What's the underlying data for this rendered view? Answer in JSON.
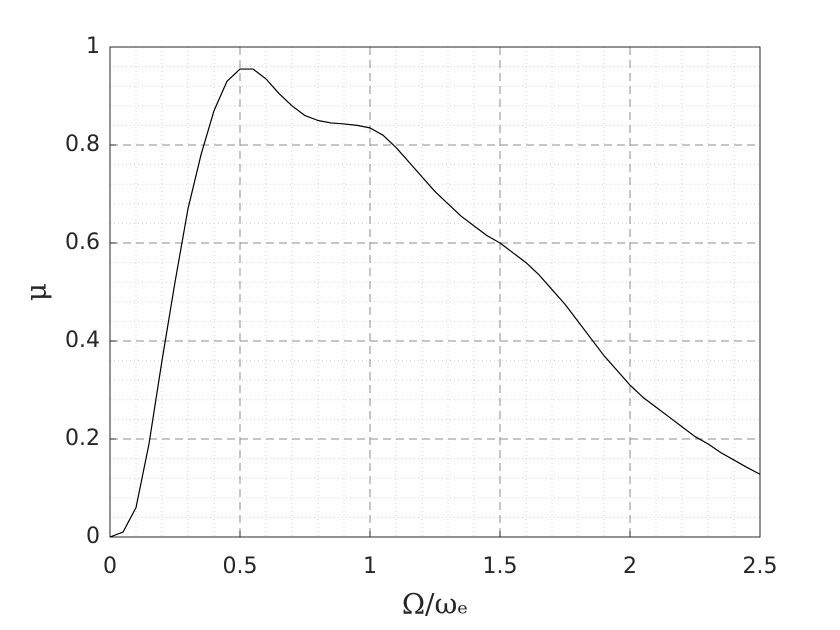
{
  "chart_data": {
    "type": "line",
    "xlabel": "Ω/ωₑ",
    "ylabel": "μ",
    "x": [
      0,
      0.05,
      0.1,
      0.15,
      0.2,
      0.25,
      0.3,
      0.35,
      0.4,
      0.45,
      0.5,
      0.55,
      0.6,
      0.65,
      0.7,
      0.75,
      0.8,
      0.85,
      0.9,
      0.95,
      1.0,
      1.05,
      1.1,
      1.15,
      1.2,
      1.25,
      1.3,
      1.35,
      1.4,
      1.45,
      1.5,
      1.55,
      1.6,
      1.65,
      1.7,
      1.75,
      1.8,
      1.85,
      1.9,
      1.95,
      2.0,
      2.05,
      2.1,
      2.15,
      2.2,
      2.25,
      2.3,
      2.35,
      2.4,
      2.45,
      2.5
    ],
    "series": [
      {
        "color": "#000000",
        "values": [
          0,
          0.01,
          0.06,
          0.19,
          0.36,
          0.52,
          0.67,
          0.78,
          0.87,
          0.93,
          0.955,
          0.955,
          0.935,
          0.905,
          0.88,
          0.86,
          0.85,
          0.845,
          0.843,
          0.84,
          0.835,
          0.82,
          0.795,
          0.765,
          0.735,
          0.705,
          0.68,
          0.655,
          0.635,
          0.615,
          0.6,
          0.58,
          0.56,
          0.535,
          0.505,
          0.475,
          0.44,
          0.405,
          0.37,
          0.34,
          0.31,
          0.285,
          0.265,
          0.245,
          0.225,
          0.205,
          0.19,
          0.172,
          0.157,
          0.142,
          0.128
        ]
      }
    ],
    "xlim": [
      0,
      2.5
    ],
    "ylim": [
      0,
      1
    ],
    "xticks": [
      0,
      0.5,
      1,
      1.5,
      2,
      2.5
    ],
    "yticks": [
      0,
      0.2,
      0.4,
      0.6,
      0.8,
      1
    ],
    "xminorticks": [
      0.1,
      0.2,
      0.3,
      0.4,
      0.6,
      0.7,
      0.8,
      0.9,
      1.1,
      1.2,
      1.3,
      1.4,
      1.6,
      1.7,
      1.8,
      1.9,
      2.1,
      2.2,
      2.3,
      2.4
    ],
    "yminorticks": [
      0.04,
      0.08,
      0.12,
      0.16,
      0.24,
      0.28,
      0.32,
      0.36,
      0.44,
      0.48,
      0.52,
      0.56,
      0.64,
      0.68,
      0.72,
      0.76,
      0.84,
      0.88,
      0.92,
      0.96
    ],
    "grid": true,
    "minor_grid": true
  }
}
